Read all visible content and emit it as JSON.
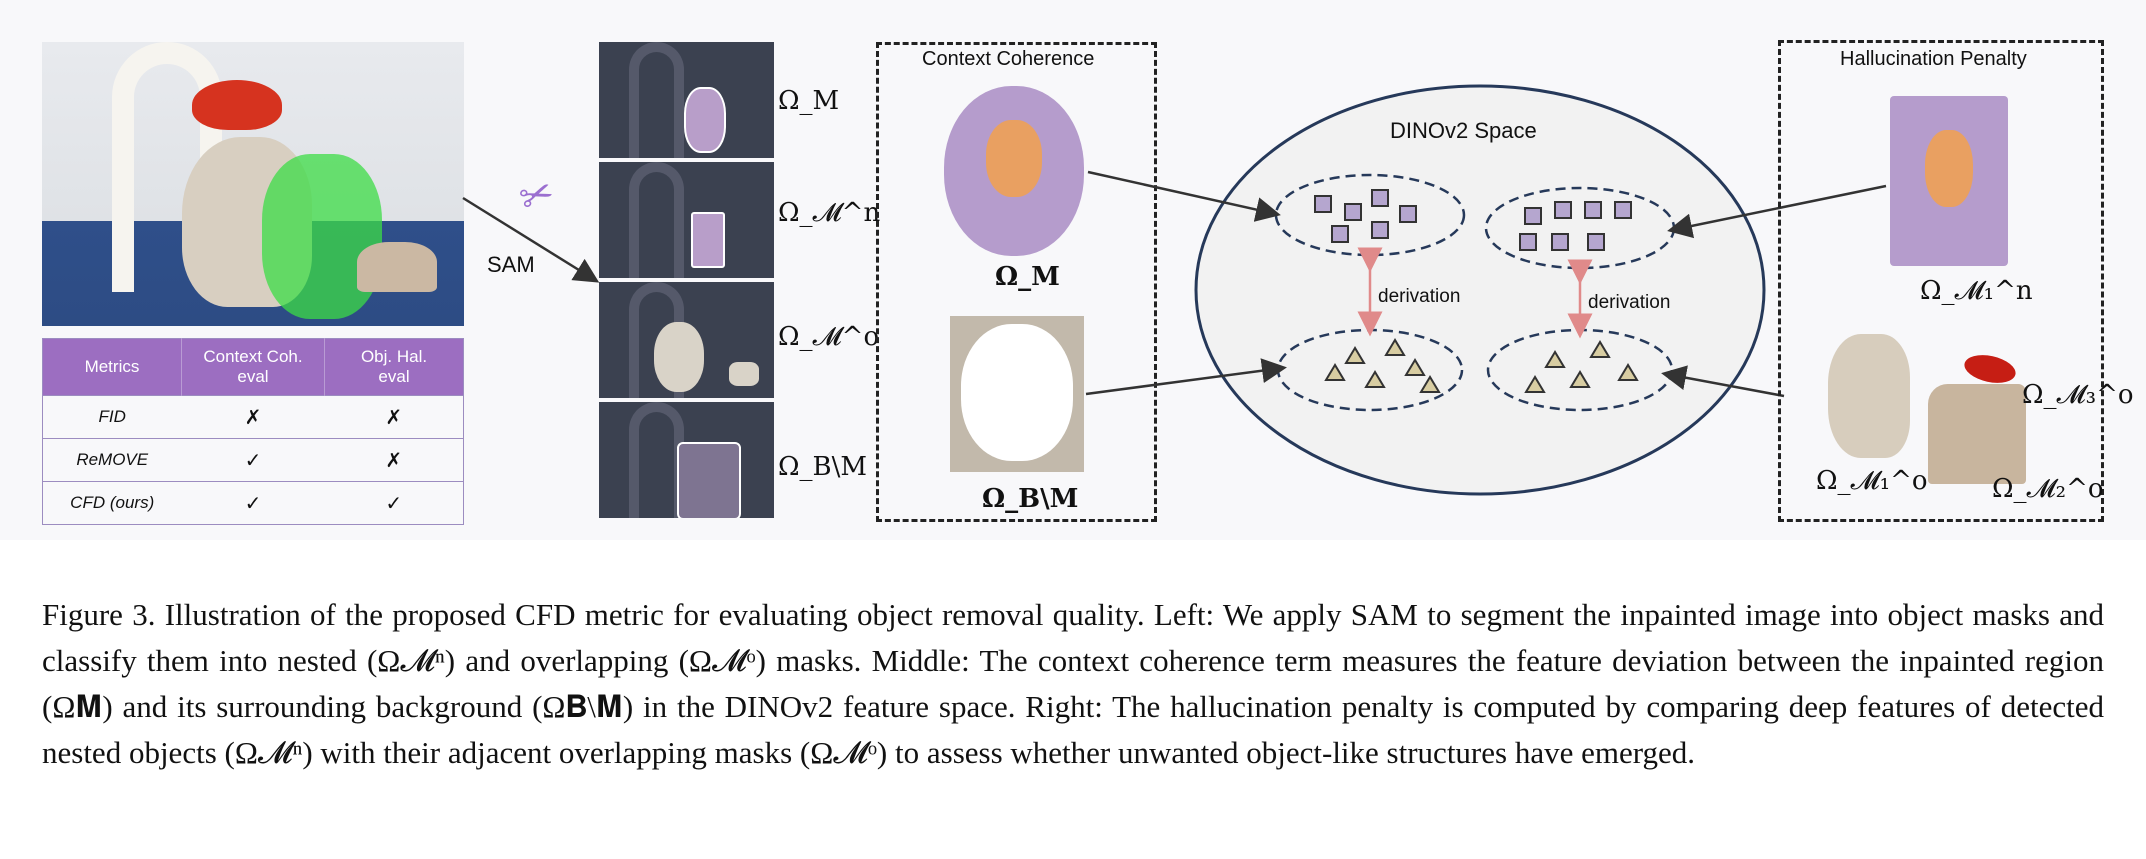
{
  "figure": {
    "table": {
      "headers": [
        "Metrics",
        "Context Coh.\neval",
        "Obj. Hal.\neval"
      ],
      "rows": [
        {
          "metric": "FID",
          "context": "✗",
          "object": "✗"
        },
        {
          "metric": "ReMOVE",
          "context": "✓",
          "object": "✗"
        },
        {
          "metric": "CFD (ours)",
          "context": "✓",
          "object": "✓"
        }
      ]
    },
    "sam_label": "SAM",
    "mask_labels": [
      "Ω_M",
      "Ω_𝓜^n",
      "Ω_𝓜^o",
      "Ω_B\\M"
    ],
    "context_box": {
      "title": "Context Coherence",
      "label_top": "Ω_M",
      "label_bottom": "Ω_B\\M"
    },
    "dino": {
      "title": "DINOv2 Space",
      "derivation_left": "derivation",
      "derivation_right": "derivation"
    },
    "halluc_box": {
      "title": "Hallucination Penalty",
      "label_n1": "Ω_𝓜₁^n",
      "label_o1": "Ω_𝓜₁^o",
      "label_o2": "Ω_𝓜₂^o",
      "label_o3": "Ω_𝓜₃^o"
    }
  },
  "caption": "Figure 3. Illustration of the proposed CFD metric for evaluating object removal quality. Left: We apply SAM to segment the inpainted image into object masks and classify them into nested (Ω𝓜ⁿ) and overlapping (Ω𝓜ᵒ) masks. Middle: The context coherence term measures the feature deviation between the inpainted region (Ω𝐌) and its surrounding background (Ω𝐁\\𝐌) in the DINOv2 feature space. Right: The hallucination penalty is computed by comparing deep features of detected nested objects (Ω𝓜ⁿ) with their adjacent overlapping masks (Ω𝓜ᵒ) to assess whether unwanted object-like structures have emerged.",
  "colors": {
    "table_header": "#9c6ec1",
    "square_fill": "#b5a6cf",
    "triangle_fill": "#d8cda2",
    "derivation_arrow": "#e08a8a"
  }
}
